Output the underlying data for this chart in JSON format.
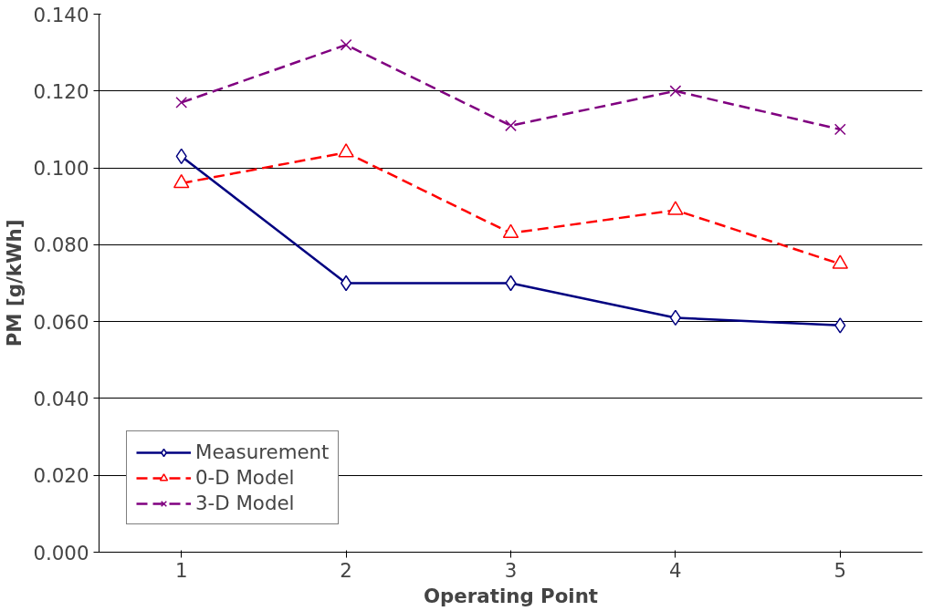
{
  "chart_data": {
    "type": "line",
    "xlabel": "Operating Point",
    "ylabel": "PM [g/kWh]",
    "categories": [
      "1",
      "2",
      "3",
      "4",
      "5"
    ],
    "series": [
      {
        "name": "Measurement",
        "color": "#000080",
        "marker": "diamond",
        "line_style": "solid",
        "values": [
          0.103,
          0.07,
          0.07,
          0.061,
          0.059
        ]
      },
      {
        "name": "0-D Model",
        "color": "#ff0000",
        "marker": "triangle",
        "line_style": "dashed",
        "values": [
          0.096,
          0.104,
          0.083,
          0.089,
          0.075
        ]
      },
      {
        "name": "3-D Model",
        "color": "#800080",
        "marker": "x",
        "line_style": "dashed",
        "values": [
          0.117,
          0.132,
          0.111,
          0.12,
          0.11
        ]
      }
    ],
    "ylim": [
      0,
      0.14
    ],
    "yticks": [
      {
        "value": 0,
        "label": "0.000"
      },
      {
        "value": 0.02,
        "label": "0.020"
      },
      {
        "value": 0.04,
        "label": "0.040"
      },
      {
        "value": 0.06,
        "label": "0.060"
      },
      {
        "value": 0.08,
        "label": "0.080"
      },
      {
        "value": 0.1,
        "label": "0.100"
      },
      {
        "value": 0.12,
        "label": "0.120"
      },
      {
        "value": 0.14,
        "label": "0.140"
      }
    ],
    "grid": "y",
    "legend": "bottom left"
  }
}
